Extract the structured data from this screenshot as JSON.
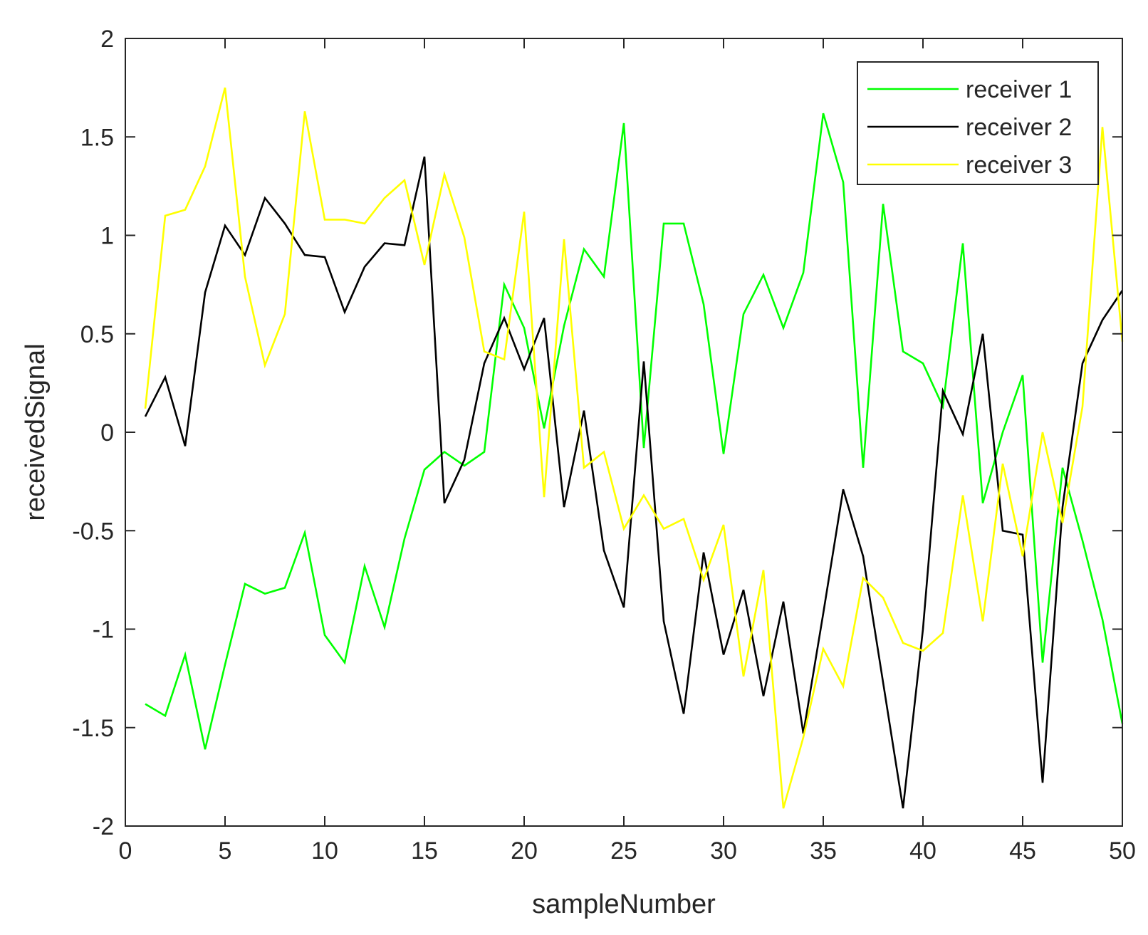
{
  "chart_data": {
    "type": "line",
    "xlabel": "sampleNumber",
    "ylabel": "receivedSignal",
    "xlim": [
      0,
      50
    ],
    "ylim": [
      -2,
      2
    ],
    "x_ticks": [
      0,
      5,
      10,
      15,
      20,
      25,
      30,
      35,
      40,
      45,
      50
    ],
    "y_ticks": [
      -2,
      -1.5,
      -1,
      -0.5,
      0,
      0.5,
      1,
      1.5,
      2
    ],
    "grid": false,
    "box": true,
    "legend_position": "top-right",
    "x": [
      1,
      2,
      3,
      4,
      5,
      6,
      7,
      8,
      9,
      10,
      11,
      12,
      13,
      14,
      15,
      16,
      17,
      18,
      19,
      20,
      21,
      22,
      23,
      24,
      25,
      26,
      27,
      28,
      29,
      30,
      31,
      32,
      33,
      34,
      35,
      36,
      37,
      38,
      39,
      40,
      41,
      42,
      43,
      44,
      45,
      46,
      47,
      48,
      49,
      50
    ],
    "series": [
      {
        "name": "receiver 1",
        "color": "#00ff00",
        "values": [
          -1.38,
          -1.44,
          -1.13,
          -1.61,
          -1.18,
          -0.77,
          -0.82,
          -0.79,
          -0.51,
          -1.03,
          -1.17,
          -0.68,
          -0.99,
          -0.54,
          -0.19,
          -0.1,
          -0.17,
          -0.1,
          0.75,
          0.53,
          0.02,
          0.54,
          0.93,
          0.79,
          1.57,
          -0.08,
          1.06,
          1.06,
          0.65,
          -0.11,
          0.6,
          0.8,
          0.53,
          0.81,
          1.62,
          1.27,
          -0.18,
          1.16,
          0.41,
          0.35,
          0.13,
          0.96,
          -0.36,
          0.0,
          0.29,
          -1.17,
          -0.18,
          -0.55,
          -0.95,
          -1.48
        ]
      },
      {
        "name": "receiver 2",
        "color": "#000000",
        "values": [
          0.08,
          0.28,
          -0.07,
          0.71,
          1.05,
          0.9,
          1.19,
          1.06,
          0.9,
          0.89,
          0.61,
          0.84,
          0.96,
          0.95,
          1.4,
          -0.36,
          -0.14,
          0.35,
          0.58,
          0.32,
          0.58,
          -0.38,
          0.11,
          -0.6,
          -0.89,
          0.36,
          -0.96,
          -1.43,
          -0.61,
          -1.13,
          -0.8,
          -1.34,
          -0.86,
          -1.53,
          -0.92,
          -0.29,
          -0.63,
          -1.27,
          -1.91,
          -1.0,
          0.21,
          -0.01,
          0.5,
          -0.5,
          -0.52,
          -1.78,
          -0.38,
          0.35,
          0.57,
          0.72
        ]
      },
      {
        "name": "receiver 3",
        "color": "#ffff00",
        "values": [
          0.12,
          1.1,
          1.13,
          1.35,
          1.75,
          0.79,
          0.34,
          0.6,
          1.63,
          1.08,
          1.08,
          1.06,
          1.19,
          1.28,
          0.85,
          1.31,
          0.99,
          0.41,
          0.37,
          1.12,
          -0.33,
          0.98,
          -0.18,
          -0.1,
          -0.49,
          -0.32,
          -0.49,
          -0.44,
          -0.75,
          -0.47,
          -1.24,
          -0.7,
          -1.91,
          -1.55,
          -1.1,
          -1.29,
          -0.74,
          -0.84,
          -1.07,
          -1.11,
          -1.02,
          -0.32,
          -0.96,
          -0.16,
          -0.63,
          0.0,
          -0.46,
          0.13,
          1.55,
          0.46
        ]
      }
    ]
  }
}
